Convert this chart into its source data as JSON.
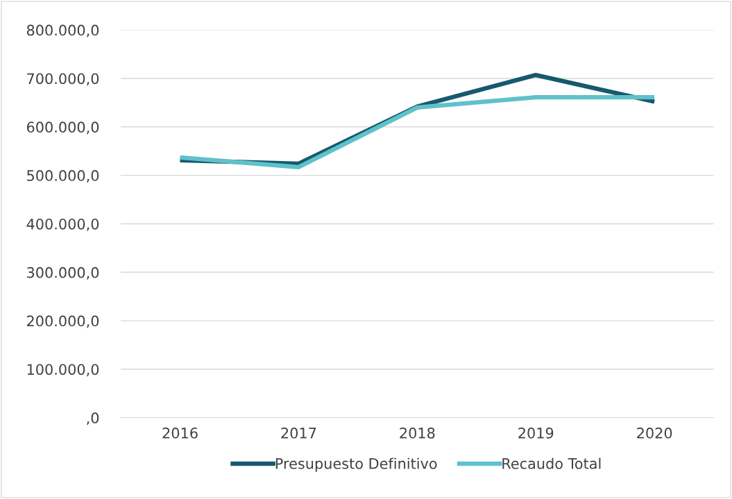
{
  "chart_data": {
    "type": "line",
    "categories": [
      "2016",
      "2017",
      "2018",
      "2019",
      "2020"
    ],
    "series": [
      {
        "name": "Presupuesto Definitivo",
        "color": "#17596e",
        "values": [
          531000,
          524000,
          642000,
          707000,
          652000
        ]
      },
      {
        "name": "Recaudo Total",
        "color": "#5fc1c9",
        "values": [
          537000,
          517000,
          640000,
          661000,
          661000
        ]
      }
    ],
    "ylim": [
      0,
      800000
    ],
    "yticks": [
      {
        "value": 0,
        "label": ",0"
      },
      {
        "value": 100000,
        "label": "100.000,0"
      },
      {
        "value": 200000,
        "label": "200.000,0"
      },
      {
        "value": 300000,
        "label": "300.000,0"
      },
      {
        "value": 400000,
        "label": "400.000,0"
      },
      {
        "value": 500000,
        "label": "500.000,0"
      },
      {
        "value": 600000,
        "label": "600.000,0"
      },
      {
        "value": 700000,
        "label": "700.000,0"
      },
      {
        "value": 800000,
        "label": "800.000,0"
      }
    ],
    "grid": "y",
    "legend": "bottom",
    "marker": "none",
    "line_style": "solid"
  }
}
